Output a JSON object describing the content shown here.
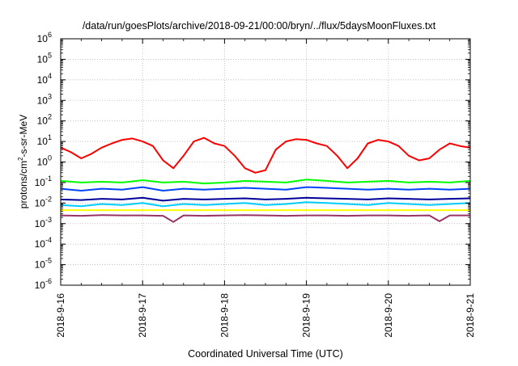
{
  "chart_data": {
    "type": "line",
    "title": "/data/run/goesPlots/archive/2018-09-21/00:00/bryn/../flux/5daysMoonFluxes.txt",
    "xlabel": "Coordinated Universal Time (UTC)",
    "ylabel": "protons/cm²-s-sr-MeV",
    "ylabel_parts": {
      "pre": "protons/cm",
      "sup": "2",
      "post": "-s-sr-MeV"
    },
    "y_scale": "log",
    "ylim": [
      1e-06,
      1000000.0
    ],
    "y_ticks": [
      {
        "base": "10",
        "exp": "-6"
      },
      {
        "base": "10",
        "exp": "-5"
      },
      {
        "base": "10",
        "exp": "-4"
      },
      {
        "base": "10",
        "exp": "-3"
      },
      {
        "base": "10",
        "exp": "-2"
      },
      {
        "base": "10",
        "exp": "-1"
      },
      {
        "base": "10",
        "exp": "0"
      },
      {
        "base": "10",
        "exp": "1"
      },
      {
        "base": "10",
        "exp": "2"
      },
      {
        "base": "10",
        "exp": "3"
      },
      {
        "base": "10",
        "exp": "4"
      },
      {
        "base": "10",
        "exp": "5"
      },
      {
        "base": "10",
        "exp": "6"
      }
    ],
    "x_ticks": [
      "2018-9-16",
      "2018-9-17",
      "2018-9-18",
      "2018-9-19",
      "2018-9-20",
      "2018-9-21"
    ],
    "xlim": [
      "2018-9-16",
      "2018-9-21"
    ],
    "grid": true,
    "legend": "none",
    "series": [
      {
        "color": "#ff0000",
        "x": [
          "2018-09-16T00:00",
          "2018-09-16T03:00",
          "2018-09-16T06:00",
          "2018-09-16T09:00",
          "2018-09-16T12:00",
          "2018-09-16T15:00",
          "2018-09-16T18:00",
          "2018-09-16T21:00",
          "2018-09-17T00:00",
          "2018-09-17T03:00",
          "2018-09-17T06:00",
          "2018-09-17T09:00",
          "2018-09-17T12:00",
          "2018-09-17T15:00",
          "2018-09-17T18:00",
          "2018-09-17T21:00",
          "2018-09-18T00:00",
          "2018-09-18T03:00",
          "2018-09-18T06:00",
          "2018-09-18T09:00",
          "2018-09-18T12:00",
          "2018-09-18T15:00",
          "2018-09-18T18:00",
          "2018-09-18T21:00",
          "2018-09-19T00:00",
          "2018-09-19T03:00",
          "2018-09-19T06:00",
          "2018-09-19T09:00",
          "2018-09-19T12:00",
          "2018-09-19T15:00",
          "2018-09-19T18:00",
          "2018-09-19T21:00",
          "2018-09-20T00:00",
          "2018-09-20T03:00",
          "2018-09-20T06:00",
          "2018-09-20T09:00",
          "2018-09-20T12:00",
          "2018-09-20T15:00",
          "2018-09-20T18:00",
          "2018-09-20T21:00",
          "2018-09-21T00:00"
        ],
        "values": [
          5,
          3,
          1.5,
          2.5,
          5,
          8,
          12,
          14,
          10,
          6,
          1.2,
          0.5,
          2,
          10,
          15,
          8,
          6,
          2,
          0.5,
          0.3,
          0.4,
          4,
          10,
          13,
          12,
          8,
          6,
          2,
          0.5,
          1.5,
          8,
          12,
          10,
          6,
          2,
          1.2,
          1.5,
          4,
          8,
          6,
          5
        ]
      },
      {
        "color": "#00ff00",
        "x": [
          "2018-09-16T00:00",
          "2018-09-16T06:00",
          "2018-09-16T12:00",
          "2018-09-16T18:00",
          "2018-09-17T00:00",
          "2018-09-17T06:00",
          "2018-09-17T12:00",
          "2018-09-17T18:00",
          "2018-09-18T00:00",
          "2018-09-18T06:00",
          "2018-09-18T12:00",
          "2018-09-18T18:00",
          "2018-09-19T00:00",
          "2018-09-19T06:00",
          "2018-09-19T12:00",
          "2018-09-19T18:00",
          "2018-09-20T00:00",
          "2018-09-20T06:00",
          "2018-09-20T12:00",
          "2018-09-20T18:00",
          "2018-09-21T00:00"
        ],
        "values": [
          0.12,
          0.1,
          0.11,
          0.1,
          0.13,
          0.1,
          0.11,
          0.09,
          0.1,
          0.12,
          0.11,
          0.1,
          0.14,
          0.12,
          0.1,
          0.11,
          0.12,
          0.1,
          0.11,
          0.1,
          0.12
        ]
      },
      {
        "color": "#00ccff",
        "x": [
          "2018-09-16T00:00",
          "2018-09-16T06:00",
          "2018-09-16T12:00",
          "2018-09-16T18:00",
          "2018-09-17T00:00",
          "2018-09-17T06:00",
          "2018-09-17T12:00",
          "2018-09-17T18:00",
          "2018-09-18T00:00",
          "2018-09-18T06:00",
          "2018-09-18T12:00",
          "2018-09-18T18:00",
          "2018-09-19T00:00",
          "2018-09-19T06:00",
          "2018-09-19T12:00",
          "2018-09-19T18:00",
          "2018-09-20T00:00",
          "2018-09-20T06:00",
          "2018-09-20T12:00",
          "2018-09-20T18:00",
          "2018-09-21T00:00"
        ],
        "values": [
          0.008,
          0.007,
          0.009,
          0.008,
          0.01,
          0.007,
          0.009,
          0.008,
          0.009,
          0.01,
          0.008,
          0.009,
          0.011,
          0.01,
          0.009,
          0.008,
          0.01,
          0.009,
          0.008,
          0.009,
          0.01
        ]
      },
      {
        "color": "#0044ff",
        "x": [
          "2018-09-16T00:00",
          "2018-09-16T06:00",
          "2018-09-16T12:00",
          "2018-09-16T18:00",
          "2018-09-17T00:00",
          "2018-09-17T06:00",
          "2018-09-17T12:00",
          "2018-09-17T18:00",
          "2018-09-18T00:00",
          "2018-09-18T06:00",
          "2018-09-18T12:00",
          "2018-09-18T18:00",
          "2018-09-19T00:00",
          "2018-09-19T06:00",
          "2018-09-19T12:00",
          "2018-09-19T18:00",
          "2018-09-20T00:00",
          "2018-09-20T06:00",
          "2018-09-20T12:00",
          "2018-09-20T18:00",
          "2018-09-21T00:00"
        ],
        "values": [
          0.05,
          0.04,
          0.05,
          0.045,
          0.06,
          0.04,
          0.05,
          0.045,
          0.05,
          0.055,
          0.05,
          0.045,
          0.06,
          0.055,
          0.05,
          0.045,
          0.05,
          0.045,
          0.05,
          0.045,
          0.05
        ]
      },
      {
        "color": "#000099",
        "x": [
          "2018-09-16T00:00",
          "2018-09-16T06:00",
          "2018-09-16T12:00",
          "2018-09-16T18:00",
          "2018-09-17T00:00",
          "2018-09-17T06:00",
          "2018-09-17T12:00",
          "2018-09-17T18:00",
          "2018-09-18T00:00",
          "2018-09-18T06:00",
          "2018-09-18T12:00",
          "2018-09-18T18:00",
          "2018-09-19T00:00",
          "2018-09-19T06:00",
          "2018-09-19T12:00",
          "2018-09-19T18:00",
          "2018-09-20T00:00",
          "2018-09-20T06:00",
          "2018-09-20T12:00",
          "2018-09-20T18:00",
          "2018-09-21T00:00"
        ],
        "values": [
          0.015,
          0.014,
          0.016,
          0.015,
          0.018,
          0.013,
          0.016,
          0.015,
          0.016,
          0.017,
          0.015,
          0.016,
          0.018,
          0.017,
          0.016,
          0.015,
          0.017,
          0.016,
          0.015,
          0.016,
          0.017
        ]
      },
      {
        "color": "#ffff00",
        "x": [
          "2018-09-16T00:00",
          "2018-09-17T00:00",
          "2018-09-18T00:00",
          "2018-09-19T00:00",
          "2018-09-20T00:00",
          "2018-09-21T00:00"
        ],
        "values": [
          0.0045,
          0.0045,
          0.0045,
          0.0045,
          0.0045,
          0.0045
        ]
      },
      {
        "color": "#993366",
        "x": [
          "2018-09-16T00:00",
          "2018-09-16T06:00",
          "2018-09-16T12:00",
          "2018-09-16T18:00",
          "2018-09-17T00:00",
          "2018-09-17T06:00",
          "2018-09-17T09:00",
          "2018-09-17T12:00",
          "2018-09-17T18:00",
          "2018-09-18T00:00",
          "2018-09-18T06:00",
          "2018-09-18T12:00",
          "2018-09-18T18:00",
          "2018-09-19T00:00",
          "2018-09-19T06:00",
          "2018-09-19T12:00",
          "2018-09-19T18:00",
          "2018-09-20T00:00",
          "2018-09-20T06:00",
          "2018-09-20T12:00",
          "2018-09-20T15:00",
          "2018-09-20T18:00",
          "2018-09-21T00:00"
        ],
        "values": [
          0.0025,
          0.0024,
          0.0026,
          0.0025,
          0.0025,
          0.0024,
          0.0012,
          0.0025,
          0.0024,
          0.0025,
          0.0026,
          0.0025,
          0.0024,
          0.0025,
          0.0025,
          0.0024,
          0.0025,
          0.0025,
          0.0024,
          0.0025,
          0.0013,
          0.0025,
          0.0025
        ]
      }
    ]
  }
}
